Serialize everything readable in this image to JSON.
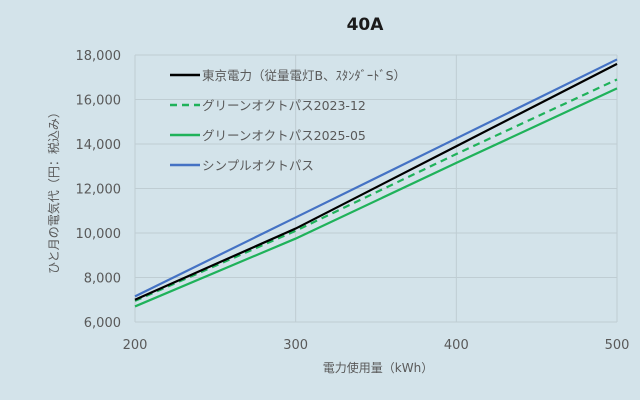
{
  "chart_data": {
    "type": "line",
    "title": "40A",
    "xlabel": "電力使用量（kWh）",
    "ylabel": "ひと月の電気代（円：税込み）",
    "xlim": [
      200,
      500
    ],
    "ylim": [
      6000,
      18000
    ],
    "x_ticks": [
      200,
      300,
      400,
      500
    ],
    "y_ticks": [
      6000,
      8000,
      10000,
      12000,
      14000,
      16000,
      18000
    ],
    "y_tick_labels": [
      "6,000",
      "8,000",
      "10,000",
      "12,000",
      "14,000",
      "16,000",
      "18,000"
    ],
    "grid": "both",
    "legend_position": "upper-left inside",
    "x": [
      200,
      300,
      400,
      500
    ],
    "series": [
      {
        "name": "東京電力（従量電灯B、ｽﾀﾝﾀﾞｰﾄﾞS）",
        "color": "#000000",
        "dash": "solid",
        "values": [
          7000,
          10200,
          13900,
          17600
        ]
      },
      {
        "name": "グリーンオクトパス2023-12",
        "color": "#1fb25a",
        "dash": "dashed",
        "values": [
          6950,
          10100,
          13550,
          16900
        ]
      },
      {
        "name": "グリーンオクトパス2025-05",
        "color": "#1fb25a",
        "dash": "solid",
        "values": [
          6700,
          9750,
          13150,
          16500
        ]
      },
      {
        "name": "シンプルオクトパス",
        "color": "#4472c4",
        "dash": "solid",
        "values": [
          7150,
          10700,
          14250,
          17800
        ]
      }
    ]
  }
}
